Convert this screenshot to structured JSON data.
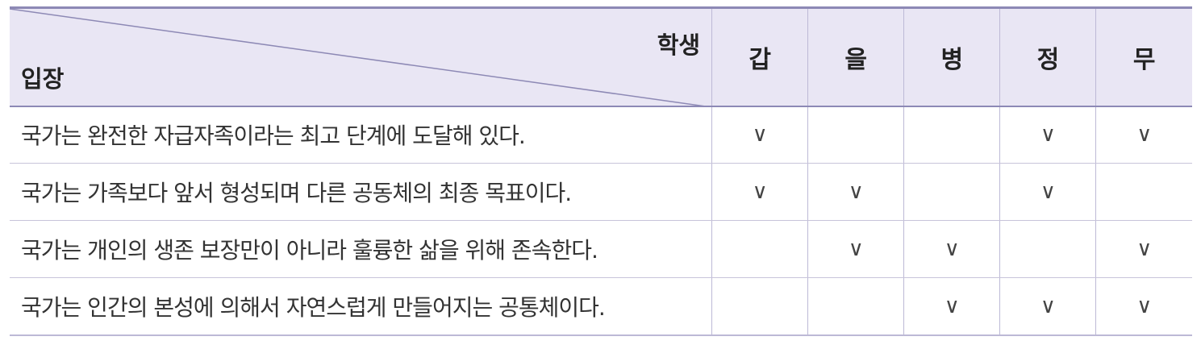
{
  "table": {
    "header": {
      "corner_top_right": "학생",
      "corner_bottom_left": "입장",
      "students": [
        "갑",
        "을",
        "병",
        "정",
        "무"
      ]
    },
    "check_mark": "∨",
    "rows": [
      {
        "statement": "국가는 완전한 자급자족이라는 최고 단계에 도달해 있다.",
        "marks": [
          "∨",
          "",
          "",
          "∨",
          "∨"
        ]
      },
      {
        "statement": "국가는 가족보다 앞서 형성되며 다른 공동체의 최종 목표이다.",
        "marks": [
          "∨",
          "∨",
          "",
          "∨",
          ""
        ]
      },
      {
        "statement": "국가는 개인의 생존 보장만이 아니라 훌륭한 삶을 위해 존속한다.",
        "marks": [
          "",
          "∨",
          "∨",
          "",
          "∨"
        ]
      },
      {
        "statement": "국가는 인간의 본성에 의해서 자연스럽게 만들어지는 공통체이다.",
        "marks": [
          "",
          "",
          "∨",
          "∨",
          "∨"
        ]
      }
    ]
  },
  "colors": {
    "header_bg": "#e9e6f4",
    "header_border": "#8d89b5",
    "grid_line": "#bdb9d6"
  }
}
